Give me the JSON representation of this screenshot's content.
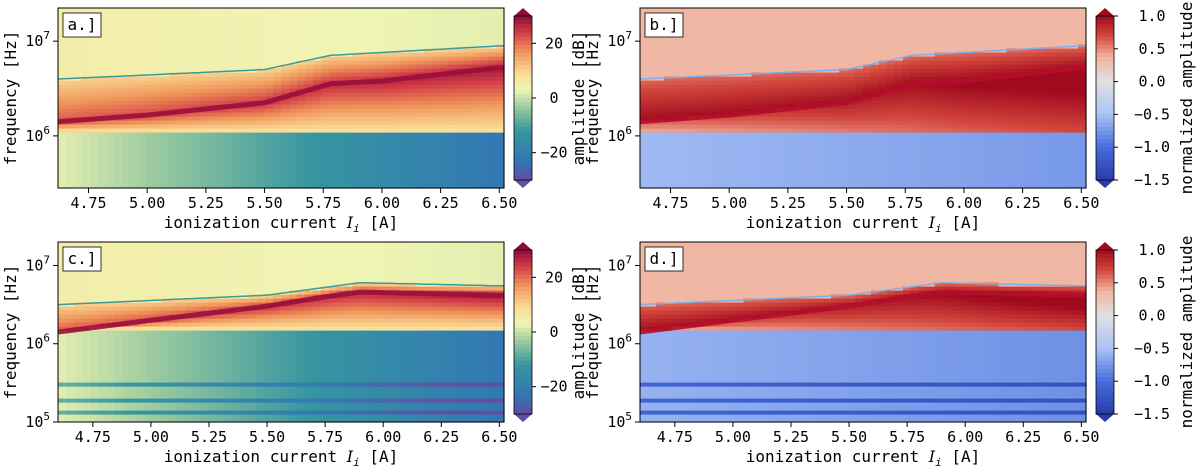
{
  "chart_data": [
    {
      "type": "heatmap",
      "panel_label": "a.]",
      "xlabel": "ionization current",
      "xlabel_symbol": "I",
      "xlabel_subscript": "i",
      "xlabel_unit": "[A]",
      "ylabel": "frequency [Hz]",
      "xlim": [
        4.62,
        6.52
      ],
      "x_ticks": [
        "4.75",
        "5.00",
        "5.25",
        "5.50",
        "5.75",
        "6.00",
        "6.25",
        "6.50"
      ],
      "ylim_log10": [
        5.45,
        7.35
      ],
      "y_ticks": [
        {
          "base": "10",
          "exp": "6"
        },
        {
          "base": "10",
          "exp": "7"
        }
      ],
      "colorbar": {
        "label": "amplitude [dB]",
        "ticks": [
          "20",
          "0",
          "−20"
        ],
        "range": [
          -30,
          30
        ],
        "colormap": "spectral"
      },
      "ridge": {
        "x": [
          4.62,
          5.0,
          5.5,
          5.78,
          6.0,
          6.5
        ],
        "log10_freq": [
          6.15,
          6.22,
          6.35,
          6.55,
          6.58,
          6.72
        ]
      },
      "upper_edge": {
        "x": [
          4.62,
          5.5,
          5.78,
          6.5
        ],
        "log10_freq": [
          6.6,
          6.7,
          6.85,
          6.95
        ]
      },
      "lower_notch_log10": 6.05,
      "background_above_dB": 5,
      "background_below_dB": -15
    },
    {
      "type": "heatmap",
      "panel_label": "b.]",
      "xlabel": "ionization current",
      "xlabel_symbol": "I",
      "xlabel_subscript": "i",
      "xlabel_unit": "[A]",
      "ylabel": "frequency [Hz]",
      "xlim": [
        4.62,
        6.52
      ],
      "x_ticks": [
        "4.75",
        "5.00",
        "5.25",
        "5.50",
        "5.75",
        "6.00",
        "6.25",
        "6.50"
      ],
      "ylim_log10": [
        5.45,
        7.35
      ],
      "y_ticks": [
        {
          "base": "10",
          "exp": "6"
        },
        {
          "base": "10",
          "exp": "7"
        }
      ],
      "colorbar": {
        "label": "normalized amplitude",
        "ticks": [
          "1.0",
          "0.5",
          "0.0",
          "−0.5",
          "−1.0",
          "−1.5"
        ],
        "range": [
          -1.5,
          1.0
        ],
        "colormap": "coolwarm"
      },
      "ridge": {
        "x": [
          4.62,
          5.0,
          5.5,
          5.78,
          6.0,
          6.5
        ],
        "log10_freq": [
          6.15,
          6.22,
          6.35,
          6.55,
          6.58,
          6.72
        ]
      },
      "upper_edge": {
        "x": [
          4.62,
          5.5,
          5.78,
          6.5
        ],
        "log10_freq": [
          6.6,
          6.7,
          6.85,
          6.95
        ]
      },
      "lower_notch_log10": 6.05,
      "background_above_norm": 0.35,
      "background_below_norm": -0.55
    },
    {
      "type": "heatmap",
      "panel_label": "c.]",
      "xlabel": "ionization current",
      "xlabel_symbol": "I",
      "xlabel_subscript": "i",
      "xlabel_unit": "[A]",
      "ylabel": "frequency [Hz]",
      "xlim": [
        4.6,
        6.52
      ],
      "x_ticks": [
        "4.75",
        "5.00",
        "5.25",
        "5.50",
        "5.75",
        "6.00",
        "6.25",
        "6.50"
      ],
      "ylim_log10": [
        5.0,
        7.3
      ],
      "y_ticks": [
        {
          "base": "10",
          "exp": "5"
        },
        {
          "base": "10",
          "exp": "6"
        },
        {
          "base": "10",
          "exp": "7"
        }
      ],
      "colorbar": {
        "label": "amplitude [dB]",
        "ticks": [
          "20",
          "0",
          "−20"
        ],
        "range": [
          -30,
          30
        ],
        "colormap": "spectral"
      },
      "ridge": {
        "x": [
          4.6,
          5.0,
          5.5,
          5.75,
          5.9,
          6.5
        ],
        "log10_freq": [
          6.15,
          6.3,
          6.48,
          6.6,
          6.66,
          6.62
        ]
      },
      "upper_edge": {
        "x": [
          4.6,
          5.5,
          5.75,
          5.9,
          6.5
        ],
        "log10_freq": [
          6.5,
          6.62,
          6.72,
          6.78,
          6.74
        ]
      },
      "lower_notch_log10": 6.2,
      "background_above_dB": 5,
      "background_below_dB": -15,
      "low_bands_log10": [
        5.48,
        5.3,
        5.12
      ]
    },
    {
      "type": "heatmap",
      "panel_label": "d.]",
      "xlabel": "ionization current",
      "xlabel_symbol": "I",
      "xlabel_subscript": "i",
      "xlabel_unit": "[A]",
      "ylabel": "frequency [Hz]",
      "xlim": [
        4.6,
        6.52
      ],
      "x_ticks": [
        "4.75",
        "5.00",
        "5.25",
        "5.50",
        "5.75",
        "6.00",
        "6.25",
        "6.50"
      ],
      "ylim_log10": [
        5.0,
        7.3
      ],
      "y_ticks": [
        {
          "base": "10",
          "exp": "5"
        },
        {
          "base": "10",
          "exp": "6"
        },
        {
          "base": "10",
          "exp": "7"
        }
      ],
      "colorbar": {
        "label": "normalized amplitude",
        "ticks": [
          "1.0",
          "0.5",
          "0.0",
          "−0.5",
          "−1.0",
          "−1.5"
        ],
        "range": [
          -1.5,
          1.0
        ],
        "colormap": "coolwarm"
      },
      "ridge": {
        "x": [
          4.6,
          5.0,
          5.5,
          5.75,
          5.9,
          6.5
        ],
        "log10_freq": [
          6.15,
          6.3,
          6.48,
          6.6,
          6.66,
          6.62
        ]
      },
      "upper_edge": {
        "x": [
          4.6,
          5.5,
          5.75,
          5.9,
          6.5
        ],
        "log10_freq": [
          6.5,
          6.62,
          6.72,
          6.78,
          6.74
        ]
      },
      "lower_notch_log10": 6.2,
      "background_above_norm": 0.35,
      "background_below_norm": -0.6,
      "low_bands_log10": [
        5.48,
        5.3,
        5.12
      ]
    }
  ]
}
